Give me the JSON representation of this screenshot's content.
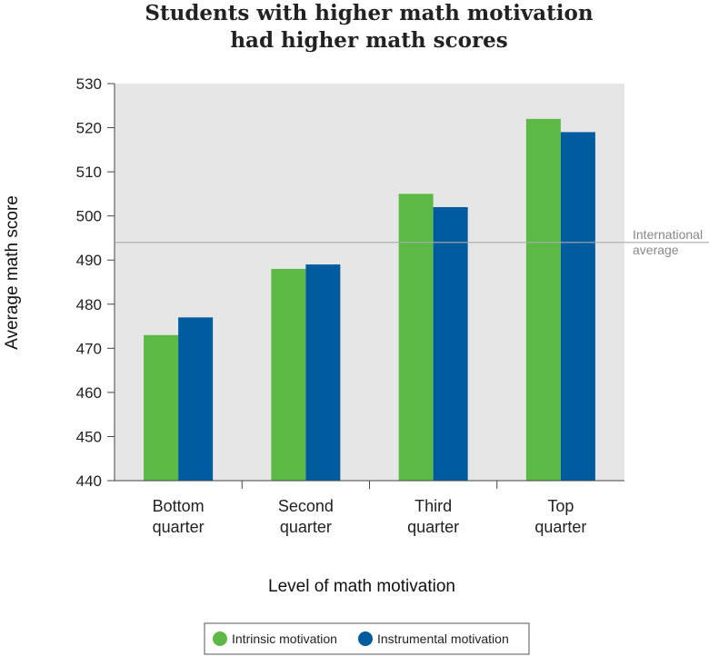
{
  "chart_data": {
    "type": "bar",
    "title_lines": [
      "Students with higher math motivation",
      "had higher math scores"
    ],
    "xlabel": "Level of math motivation",
    "ylabel": "Average math score",
    "categories": [
      [
        "Bottom",
        "quarter"
      ],
      [
        "Second",
        "quarter"
      ],
      [
        "Third",
        "quarter"
      ],
      [
        "Top",
        "quarter"
      ]
    ],
    "series": [
      {
        "name": "Intrinsic motivation",
        "color": "#5cb946",
        "values": [
          473,
          488,
          505,
          522
        ]
      },
      {
        "name": "Instrumental motivation",
        "color": "#005b9f",
        "values": [
          477,
          489,
          502,
          519
        ]
      }
    ],
    "ylim": [
      440,
      530
    ],
    "yticks": [
      440,
      450,
      460,
      470,
      480,
      490,
      500,
      510,
      520,
      530
    ],
    "reference_line": {
      "value": 494,
      "label_lines": [
        "International",
        "average"
      ],
      "color": "#aaaaaa"
    },
    "plot_background": "#e6e6e6",
    "grid": false,
    "legend_position": "bottom-center"
  }
}
